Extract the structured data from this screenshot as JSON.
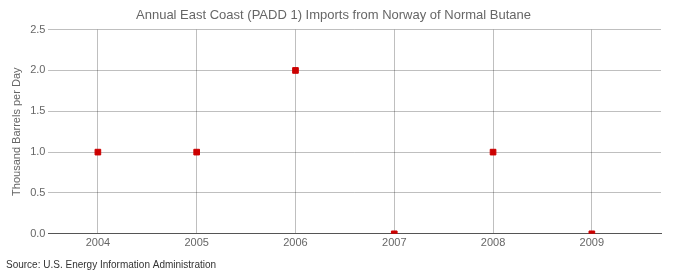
{
  "chart_data": {
    "type": "scatter",
    "title": "Annual East Coast (PADD 1) Imports from Norway of Normal Butane",
    "ylabel": "Thousand Barrels per Day",
    "source": "Source: U.S. Energy Information Administration",
    "x": [
      2004,
      2005,
      2006,
      2007,
      2008,
      2009
    ],
    "values": [
      1.0,
      1.0,
      2.0,
      0.0,
      1.0,
      0.0
    ],
    "color": "#cc0000",
    "marker": "square",
    "xlim": [
      2003.5,
      2009.7
    ],
    "ylim": [
      0.0,
      2.5
    ],
    "xticks": [
      2004,
      2005,
      2006,
      2007,
      2008,
      2009
    ],
    "yticks": [
      {
        "value": 0.0,
        "label": "0.0"
      },
      0.5,
      {
        "value": 1.0,
        "label": "1.0"
      },
      1.5,
      {
        "value": 2.0,
        "label": "2.0"
      },
      {
        "value": 2.5,
        "label": "2.5"
      }
    ],
    "grid": true
  }
}
